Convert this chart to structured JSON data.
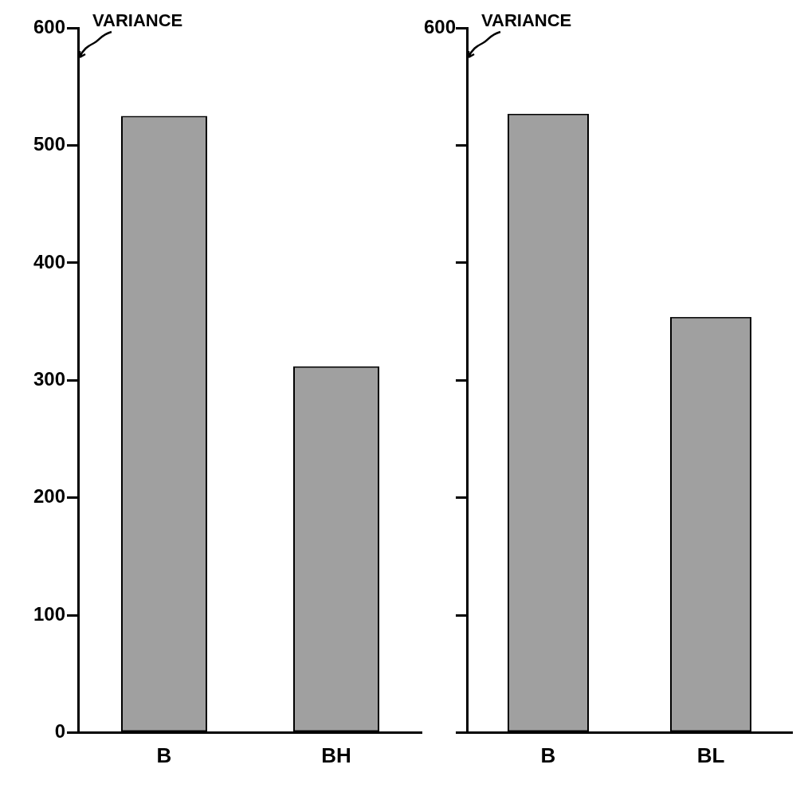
{
  "chart_data": [
    {
      "type": "bar",
      "ylabel": "VARIANCE",
      "categories": [
        "B",
        "BH"
      ],
      "values": [
        525,
        312
      ],
      "color": "#a0a0a0",
      "ylim": [
        0,
        600
      ],
      "yticks": [
        0,
        100,
        200,
        300,
        400,
        500,
        600
      ],
      "grid": false,
      "legend": false
    },
    {
      "type": "bar",
      "ylabel": "VARIANCE",
      "categories": [
        "B",
        "BL"
      ],
      "values": [
        527,
        354
      ],
      "color": "#a0a0a0",
      "ylim": [
        0,
        600
      ],
      "yticks": [
        0,
        100,
        200,
        300,
        400,
        500,
        600
      ],
      "tick_labels": "x",
      "annotations": [
        "600"
      ],
      "grid": false,
      "legend": false
    }
  ]
}
